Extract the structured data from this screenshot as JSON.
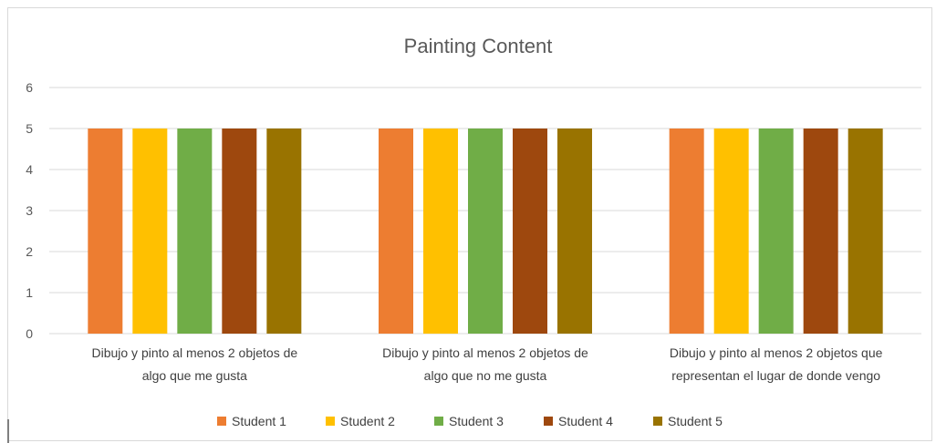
{
  "chart_data": {
    "type": "bar",
    "title": "Painting Content",
    "xlabel": "",
    "ylabel": "",
    "ylim": [
      0,
      6
    ],
    "yticks": [
      0,
      1,
      2,
      3,
      4,
      5,
      6
    ],
    "grid": true,
    "legend_position": "bottom",
    "categories": [
      [
        "Dibujo y pinto al menos 2 objetos de",
        "algo que me gusta"
      ],
      [
        "Dibujo y pinto al menos 2 objetos de",
        "algo que no me gusta"
      ],
      [
        "Dibujo y pinto al menos 2 objetos que",
        "representan el lugar de donde vengo"
      ]
    ],
    "series": [
      {
        "name": "Student 1",
        "color": "#ED7D31",
        "values": [
          5,
          5,
          5
        ]
      },
      {
        "name": "Student 2",
        "color": "#FFC000",
        "values": [
          5,
          5,
          5
        ]
      },
      {
        "name": "Student 3",
        "color": "#70AD47",
        "values": [
          5,
          5,
          5
        ]
      },
      {
        "name": "Student 4",
        "color": "#9E480E",
        "values": [
          5,
          5,
          5
        ]
      },
      {
        "name": "Student 5",
        "color": "#997300",
        "values": [
          5,
          5,
          5
        ]
      }
    ]
  }
}
